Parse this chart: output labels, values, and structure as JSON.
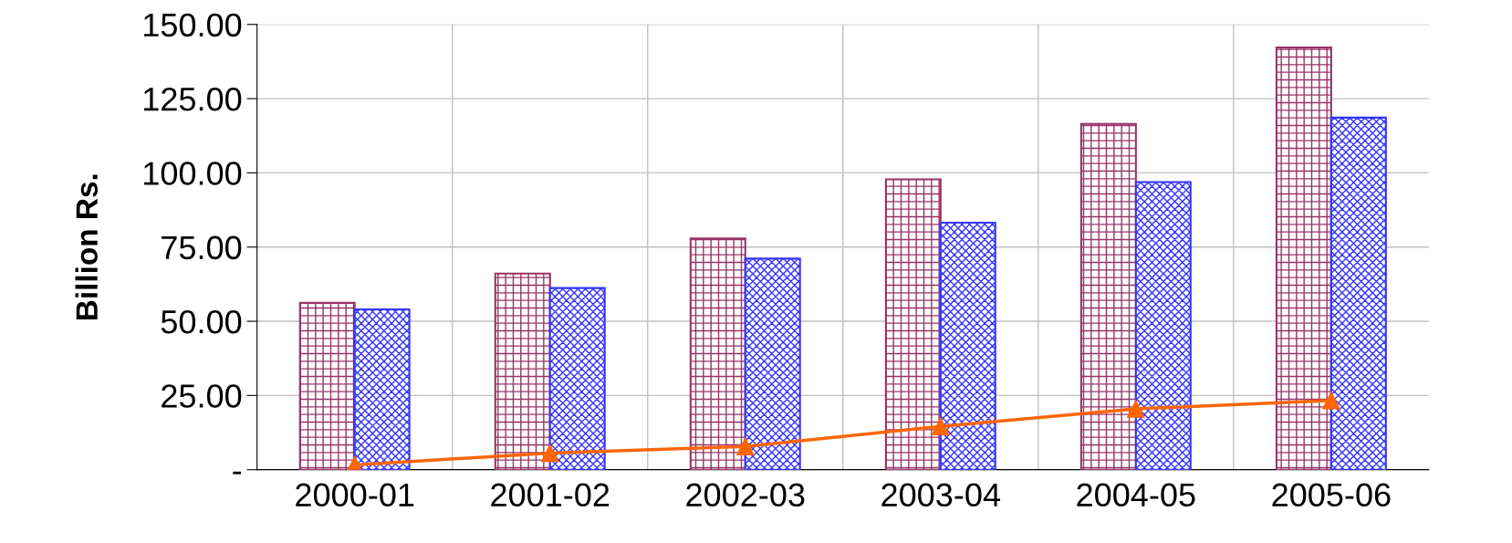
{
  "chart_data": {
    "type": "bar",
    "ylabel": "Billion Rs.",
    "categories": [
      "2000-01",
      "2001-02",
      "2002-03",
      "2003-04",
      "2004-05",
      "2005-06"
    ],
    "series": [
      {
        "color": "#993366",
        "values": [
          56.2,
          66.1,
          77.9,
          97.8,
          116.5,
          142.2
        ]
      },
      {
        "color": "#3333ff",
        "values": [
          54.0,
          61.2,
          71.1,
          83.2,
          96.9,
          118.6
        ]
      },
      {
        "type": "line",
        "color": "#ff6600",
        "values": [
          1.6,
          5.6,
          7.8,
          14.6,
          20.5,
          23.3
        ]
      }
    ],
    "ylim": [
      0,
      150
    ],
    "yticks": [
      {
        "value": 0,
        "label": "-"
      },
      {
        "value": 25,
        "label": "25.00"
      },
      {
        "value": 50,
        "label": "50.00"
      },
      {
        "value": 75,
        "label": "75.00"
      },
      {
        "value": 100,
        "label": "100.00"
      },
      {
        "value": 125,
        "label": "125.00"
      },
      {
        "value": 150,
        "label": "150.00"
      }
    ],
    "grid": true,
    "marker": "triangle",
    "line_style": "solid"
  }
}
